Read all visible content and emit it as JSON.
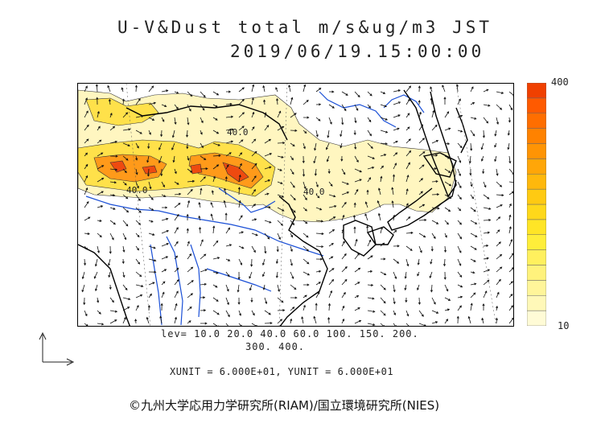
{
  "title": {
    "line1": "U-V&Dust total m/s&ug/m3 JST",
    "line2": "2019/06/19.15:00:00"
  },
  "colorbar": {
    "max_label": "400",
    "min_label": "10",
    "colors": [
      "#fffbd6",
      "#fff8b8",
      "#fff59a",
      "#fff27c",
      "#fff05e",
      "#ffee3a",
      "#ffe526",
      "#ffd81a",
      "#ffca12",
      "#ffb80c",
      "#ffa608",
      "#ff9404",
      "#ff8200",
      "#ff6e00",
      "#ff5a00",
      "#f04000"
    ]
  },
  "levels": {
    "line1": "lev= 10.0 20.0 40.0 60.0 100. 150. 200.",
    "line2": "300. 400."
  },
  "units": "XUNIT = 6.000E+01, YUNIT = 6.000E+01",
  "copyright": "©九州大学応用力学研究所(RIAM)/国立環境研究所(NIES)",
  "map": {
    "contour_labels": [
      "40.0",
      "40.0",
      "40.0"
    ],
    "colors": {
      "coast": "#000000",
      "river": "#1a4fd6",
      "dust_low": "#fff6c0",
      "dust_mid": "#ffe14a",
      "dust_high": "#ff9a1a",
      "dust_peak": "#ee4a10"
    }
  }
}
